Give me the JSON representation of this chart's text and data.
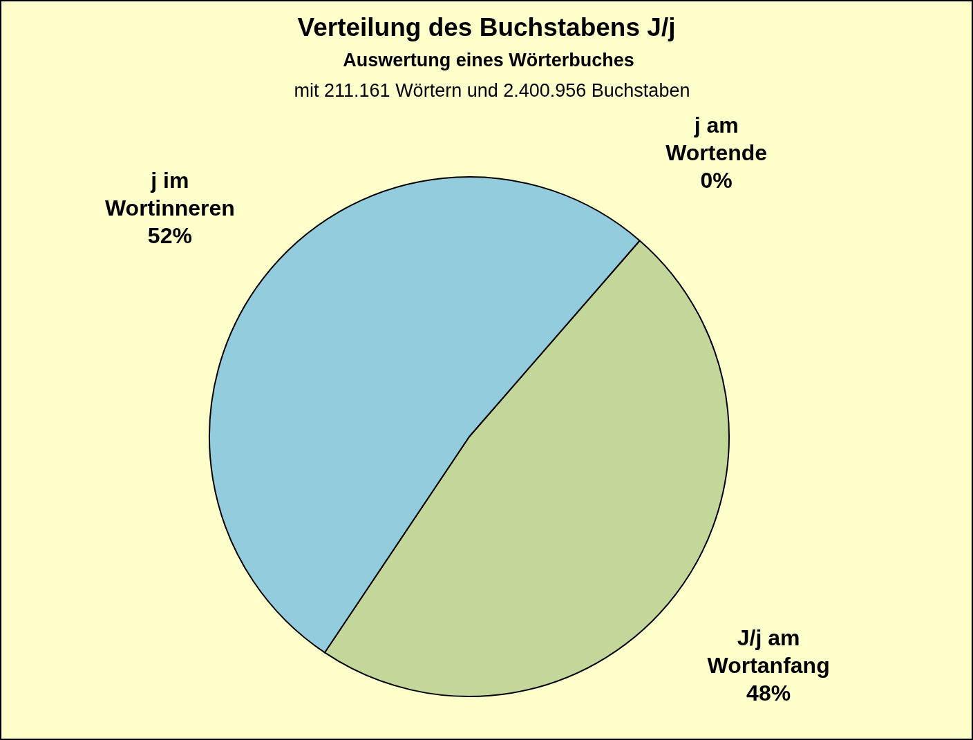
{
  "chart_data": {
    "type": "pie",
    "title": "Verteilung des Buchstabens J/j",
    "subtitle": "Auswertung eines Wörterbuches",
    "annotations": [
      "mit 211.161 Wörtern und 2.400.956 Buchstaben"
    ],
    "categories": [
      "J/j am Wortanfang",
      "j im Wortinneren",
      "j am Wortende"
    ],
    "values": [
      48,
      52,
      0
    ],
    "colors": [
      "#c4d79b",
      "#93cddd",
      null
    ],
    "value_labels": [
      "48%",
      "52%",
      "0%"
    ]
  }
}
